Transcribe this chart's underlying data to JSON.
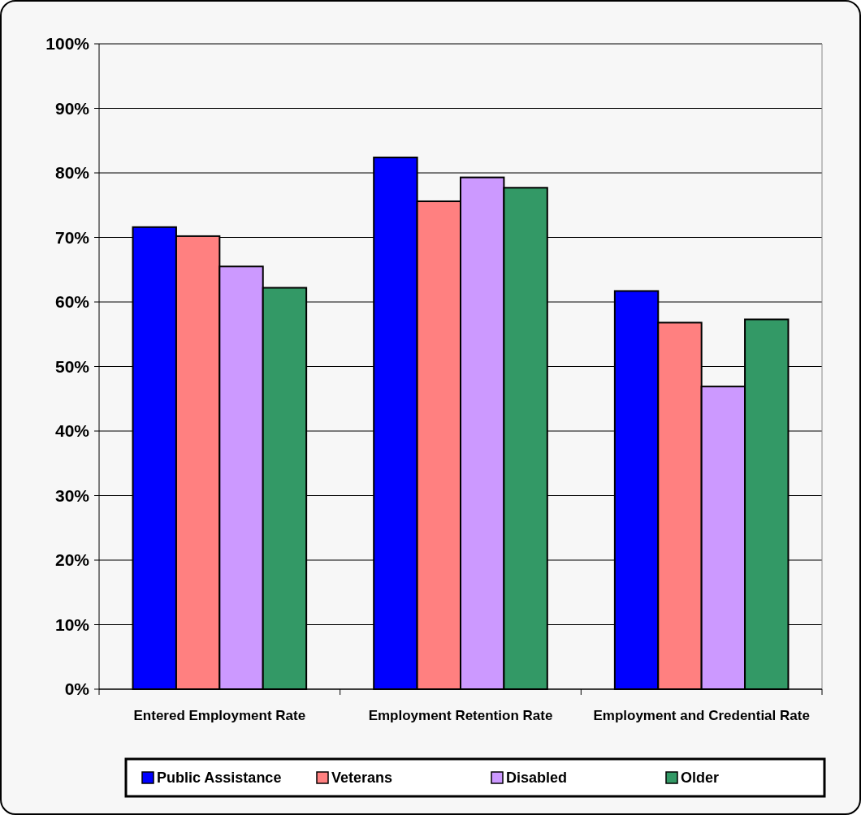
{
  "chart_data": {
    "type": "bar",
    "categories": [
      "Entered Employment Rate",
      "Employment Retention Rate",
      "Employment and Credential Rate"
    ],
    "series": [
      {
        "name": "Public Assistance",
        "color": "#0000ff",
        "values": [
          71.6,
          82.4,
          61.7
        ]
      },
      {
        "name": "Veterans",
        "color": "#ff8080",
        "values": [
          70.2,
          75.6,
          56.8
        ]
      },
      {
        "name": "Disabled",
        "color": "#cc99ff",
        "values": [
          65.5,
          79.3,
          46.9
        ]
      },
      {
        "name": "Older",
        "color": "#339966",
        "values": [
          62.2,
          77.7,
          57.3
        ]
      }
    ],
    "ylim": [
      0,
      100
    ],
    "yticks": [
      {
        "value": 0,
        "label": "0%"
      },
      {
        "value": 10,
        "label": "10%"
      },
      {
        "value": 20,
        "label": "20%"
      },
      {
        "value": 30,
        "label": "30%"
      },
      {
        "value": 40,
        "label": "40%"
      },
      {
        "value": 50,
        "label": "50%"
      },
      {
        "value": 60,
        "label": "60%"
      },
      {
        "value": 70,
        "label": "70%"
      },
      {
        "value": 80,
        "label": "80%"
      },
      {
        "value": 90,
        "label": "90%"
      },
      {
        "value": 100,
        "label": "100%"
      }
    ],
    "grid": "y",
    "legend": "bottom"
  }
}
